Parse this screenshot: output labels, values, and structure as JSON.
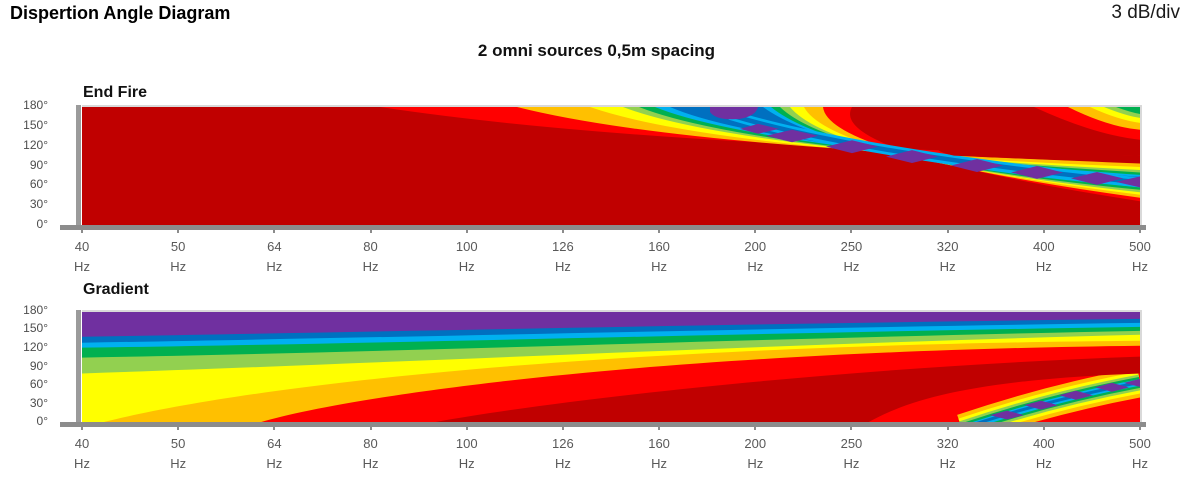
{
  "header": {
    "title": "Dispertion Angle Diagram",
    "scale_label": "3 dB/div",
    "subtitle": "2 omni sources 0,5m spacing"
  },
  "charts": [
    {
      "label": "End Fire"
    },
    {
      "label": "Gradient"
    }
  ],
  "axis": {
    "x_ticks": [
      {
        "value": "40",
        "unit": "Hz"
      },
      {
        "value": "50",
        "unit": "Hz"
      },
      {
        "value": "64",
        "unit": "Hz"
      },
      {
        "value": "80",
        "unit": "Hz"
      },
      {
        "value": "100",
        "unit": "Hz"
      },
      {
        "value": "126",
        "unit": "Hz"
      },
      {
        "value": "160",
        "unit": "Hz"
      },
      {
        "value": "200",
        "unit": "Hz"
      },
      {
        "value": "250",
        "unit": "Hz"
      },
      {
        "value": "320",
        "unit": "Hz"
      },
      {
        "value": "400",
        "unit": "Hz"
      },
      {
        "value": "500",
        "unit": "Hz"
      }
    ],
    "y_ticks": [
      "180°",
      "150°",
      "120°",
      "90°",
      "60°",
      "30°",
      "0°"
    ]
  },
  "palette_loud_to_quiet": [
    "#C00000",
    "#FF0000",
    "#FFC000",
    "#FFFF00",
    "#92D050",
    "#00B050",
    "#00B0F0",
    "#0070C0",
    "#7030A0"
  ],
  "chart_data": [
    {
      "type": "contour",
      "title": "End Fire",
      "x_axis": {
        "categories": [
          "40",
          "50",
          "64",
          "80",
          "100",
          "126",
          "160",
          "200",
          "250",
          "320",
          "400",
          "500"
        ],
        "unit": "Hz",
        "scale": "logarithmic, equal category spacing"
      },
      "y_axis": {
        "unit": "degrees",
        "ticks": [
          180,
          150,
          120,
          90,
          60,
          30,
          0
        ],
        "range": [
          0,
          180
        ]
      },
      "level_scale": "3 dB per color band (3 dB/div)",
      "palette_loud_to_quiet": [
        "#C00000",
        "#FF0000",
        "#FFC000",
        "#FFFF00",
        "#92D050",
        "#00B050",
        "#00B0F0",
        "#0070C0",
        "#7030A0"
      ],
      "features": [
        "Uniform maximum level (dark red) over all angles below ~80 Hz",
        "Attenuation contours appear first at 180°: red from ~80 Hz, orange ~110 Hz, yellow ~130 Hz, greens ~145-155 Hz, blue/purple ~160-175 Hz",
        "Deep null channel (purple diamonds in blue/cyan core) sweeps from 180° at ~170 Hz down to ~70° at 500 Hz",
        "Dark-red side-lobe maximum reappears between the null channel and the rear above ~250 Hz",
        "Second null begins as nested red/orange/yellow/green arcs in the top-right corner (~450-500 Hz near 180°)"
      ]
    },
    {
      "type": "contour",
      "title": "Gradient",
      "x_axis": {
        "categories": [
          "40",
          "50",
          "64",
          "80",
          "100",
          "126",
          "160",
          "200",
          "250",
          "320",
          "400",
          "500"
        ],
        "unit": "Hz",
        "scale": "logarithmic, equal category spacing"
      },
      "y_axis": {
        "unit": "degrees",
        "ticks": [
          180,
          150,
          120,
          90,
          60,
          30,
          0
        ],
        "range": [
          0,
          180
        ]
      },
      "level_scale": "3 dB per color band (3 dB/div)",
      "palette_loud_to_quiet": [
        "#C00000",
        "#FF0000",
        "#FFC000",
        "#FFFF00",
        "#92D050",
        "#00B050",
        "#00B0F0",
        "#0070C0",
        "#7030A0"
      ],
      "features": [
        "Layered attenuation bands at low frequency: purple (max attenuation) at 180°, then blue, cyan, green, light green toward lower angles",
        "Yellow covers ~0-60° at 40 Hz; orange from ~42 Hz and red from ~62 Hz grow along the bottom",
        "Loudest dark-red region spans low-to-mid angles from ~90 Hz to 500 Hz",
        "Attenuation layers compress toward 180° as frequency rises",
        "Null channel (purple diamonds with rainbow fringes) emerges from 0° at ~320 Hz and climbs to ~65-80° at 500 Hz",
        "Bright red fills the bottom-right corner below the null channel"
      ]
    }
  ]
}
